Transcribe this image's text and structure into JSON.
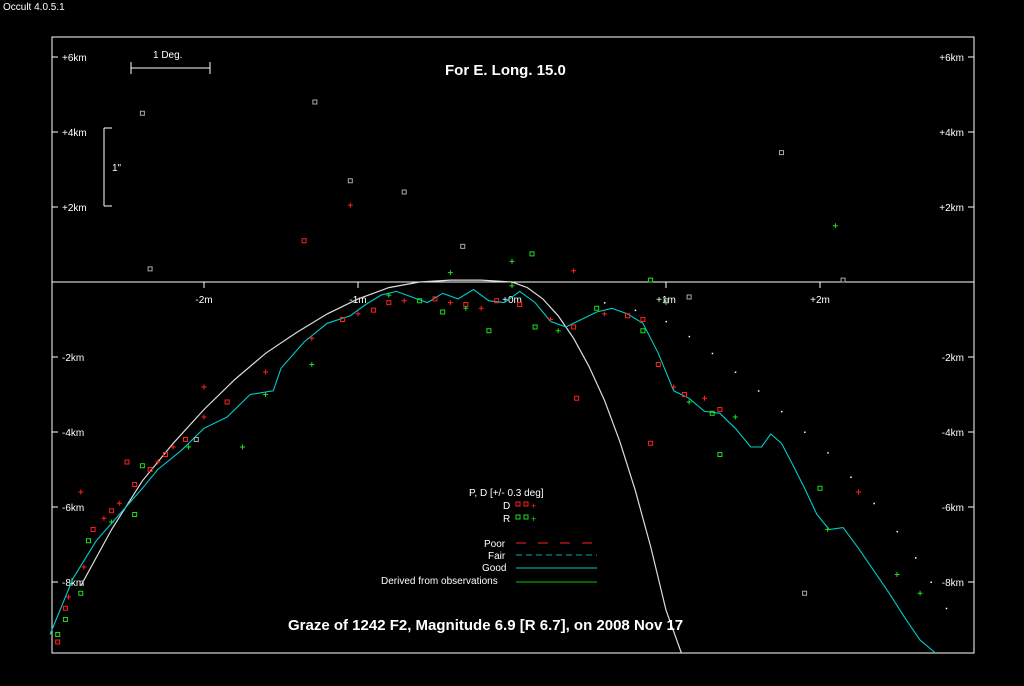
{
  "window": {
    "title": "Occult 4.0.5.1"
  },
  "colors": {
    "background": "#000000",
    "frame": "#ffffff",
    "limb": "#dddddd",
    "profile_good": "#00cccc",
    "derived": "#00cc00",
    "disappear": "#ff2020",
    "reappear": "#20dd20",
    "other": "#aaaaaa"
  },
  "chart_data": {
    "type": "scatter",
    "title": "For E. Long. 15.0",
    "caption": "Graze of  1242 F2,  Magnitude 6.9 [R 6.7],  on 2008 Nov 17",
    "x_ticks": [
      {
        "v": -2,
        "label": "-2m"
      },
      {
        "v": -1,
        "label": "-1m"
      },
      {
        "v": 0,
        "label": "+0m"
      },
      {
        "v": 1,
        "label": "+1m"
      },
      {
        "v": 2,
        "label": "+2m"
      }
    ],
    "y_ticks": [
      {
        "v": 6,
        "label": "+6km"
      },
      {
        "v": 4,
        "label": "+4km"
      },
      {
        "v": 2,
        "label": "+2km"
      },
      {
        "v": -2,
        "label": "-2km"
      },
      {
        "v": -4,
        "label": "-4km"
      },
      {
        "v": -6,
        "label": "-6km"
      },
      {
        "v": -8,
        "label": "-8km"
      }
    ],
    "xlim": [
      -3.0,
      2.8
    ],
    "ylim": [
      -10.0,
      6.0
    ],
    "scale_bars": {
      "degree": "1 Deg.",
      "arcsec": "1\""
    },
    "legend": {
      "pd_header": "P, D [+/- 0.3 deg]",
      "D": "D",
      "R": "R",
      "poor": "Poor",
      "fair": "Fair",
      "good": "Good",
      "derived": "Derived from observations"
    },
    "mean_limb": [
      [
        -3.0,
        -9.9
      ],
      [
        -2.8,
        -8.1
      ],
      [
        -2.6,
        -6.6
      ],
      [
        -2.4,
        -5.3
      ],
      [
        -2.2,
        -4.3
      ],
      [
        -2.0,
        -3.4
      ],
      [
        -1.8,
        -2.6
      ],
      [
        -1.6,
        -1.9
      ],
      [
        -1.4,
        -1.35
      ],
      [
        -1.2,
        -0.85
      ],
      [
        -1.0,
        -0.45
      ],
      [
        -0.8,
        -0.15
      ],
      [
        -0.6,
        0.0
      ],
      [
        -0.4,
        0.05
      ],
      [
        -0.2,
        0.05
      ],
      [
        0.0,
        0.0
      ],
      [
        0.1,
        -0.15
      ],
      [
        0.2,
        -0.45
      ],
      [
        0.3,
        -0.9
      ],
      [
        0.4,
        -1.5
      ],
      [
        0.5,
        -2.25
      ],
      [
        0.6,
        -3.15
      ],
      [
        0.7,
        -4.25
      ],
      [
        0.8,
        -5.55
      ],
      [
        0.9,
        -7.05
      ],
      [
        1.0,
        -8.75
      ],
      [
        1.1,
        -10.0
      ]
    ],
    "good_profile": [
      [
        -3.0,
        -9.4
      ],
      [
        -2.85,
        -7.9
      ],
      [
        -2.7,
        -6.9
      ],
      [
        -2.55,
        -6.2
      ],
      [
        -2.4,
        -5.5
      ],
      [
        -2.3,
        -5.0
      ],
      [
        -2.15,
        -4.5
      ],
      [
        -2.0,
        -3.9
      ],
      [
        -1.85,
        -3.6
      ],
      [
        -1.7,
        -3.0
      ],
      [
        -1.55,
        -2.9
      ],
      [
        -1.5,
        -2.3
      ],
      [
        -1.35,
        -1.6
      ],
      [
        -1.2,
        -1.1
      ],
      [
        -1.05,
        -0.9
      ],
      [
        -0.95,
        -0.6
      ],
      [
        -0.85,
        -0.35
      ],
      [
        -0.75,
        -0.25
      ],
      [
        -0.65,
        -0.4
      ],
      [
        -0.55,
        -0.55
      ],
      [
        -0.45,
        -0.3
      ],
      [
        -0.35,
        -0.45
      ],
      [
        -0.25,
        -0.2
      ],
      [
        -0.15,
        -0.5
      ],
      [
        -0.05,
        -0.55
      ],
      [
        0.05,
        -0.25
      ],
      [
        0.15,
        -0.55
      ],
      [
        0.25,
        -1.05
      ],
      [
        0.35,
        -1.2
      ],
      [
        0.45,
        -1.0
      ],
      [
        0.55,
        -0.8
      ],
      [
        0.65,
        -0.7
      ],
      [
        0.75,
        -0.85
      ],
      [
        0.85,
        -1.1
      ],
      [
        0.95,
        -1.9
      ],
      [
        1.05,
        -2.9
      ],
      [
        1.15,
        -3.1
      ],
      [
        1.25,
        -3.45
      ],
      [
        1.35,
        -3.5
      ],
      [
        1.45,
        -3.9
      ],
      [
        1.55,
        -4.4
      ],
      [
        1.62,
        -4.4
      ],
      [
        1.68,
        -4.05
      ],
      [
        1.75,
        -4.3
      ],
      [
        1.82,
        -4.85
      ],
      [
        1.9,
        -5.5
      ],
      [
        1.98,
        -6.2
      ],
      [
        2.06,
        -6.6
      ],
      [
        2.15,
        -6.55
      ],
      [
        2.25,
        -7.1
      ],
      [
        2.35,
        -7.7
      ],
      [
        2.45,
        -8.3
      ],
      [
        2.55,
        -8.95
      ],
      [
        2.65,
        -9.55
      ],
      [
        2.75,
        -10.0
      ]
    ],
    "points": [
      {
        "x": -3.0,
        "y": -9.2,
        "s": "D",
        "m": "o"
      },
      {
        "x": -2.95,
        "y": -9.6,
        "s": "D",
        "m": "o"
      },
      {
        "x": -2.9,
        "y": -8.7,
        "s": "D",
        "m": "o"
      },
      {
        "x": -2.88,
        "y": -8.4,
        "s": "D",
        "m": "+"
      },
      {
        "x": -2.78,
        "y": -7.6,
        "s": "D",
        "m": "+"
      },
      {
        "x": -2.72,
        "y": -6.6,
        "s": "D",
        "m": "o"
      },
      {
        "x": -2.65,
        "y": -6.3,
        "s": "D",
        "m": "+"
      },
      {
        "x": -2.6,
        "y": -6.1,
        "s": "D",
        "m": "o"
      },
      {
        "x": -2.55,
        "y": -5.9,
        "s": "D",
        "m": "+"
      },
      {
        "x": -2.45,
        "y": -5.4,
        "s": "D",
        "m": "o"
      },
      {
        "x": -2.35,
        "y": -5.0,
        "s": "D",
        "m": "o"
      },
      {
        "x": -2.3,
        "y": -4.8,
        "s": "D",
        "m": "+"
      },
      {
        "x": -2.25,
        "y": -4.6,
        "s": "D",
        "m": "o"
      },
      {
        "x": -2.2,
        "y": -4.4,
        "s": "D",
        "m": "+"
      },
      {
        "x": -2.12,
        "y": -4.2,
        "s": "D",
        "m": "o"
      },
      {
        "x": -2.0,
        "y": -3.6,
        "s": "D",
        "m": "+"
      },
      {
        "x": -1.85,
        "y": -3.2,
        "s": "D",
        "m": "o"
      },
      {
        "x": -1.6,
        "y": -2.4,
        "s": "D",
        "m": "+"
      },
      {
        "x": -1.3,
        "y": -1.5,
        "s": "D",
        "m": "+"
      },
      {
        "x": -1.1,
        "y": -1.0,
        "s": "D",
        "m": "o"
      },
      {
        "x": -1.0,
        "y": -0.85,
        "s": "D",
        "m": "+"
      },
      {
        "x": -0.9,
        "y": -0.75,
        "s": "D",
        "m": "o"
      },
      {
        "x": -0.8,
        "y": -0.55,
        "s": "D",
        "m": "o"
      },
      {
        "x": -0.7,
        "y": -0.5,
        "s": "D",
        "m": "+"
      },
      {
        "x": -0.5,
        "y": -0.45,
        "s": "D",
        "m": "o"
      },
      {
        "x": -0.4,
        "y": -0.55,
        "s": "D",
        "m": "+"
      },
      {
        "x": -0.3,
        "y": -0.6,
        "s": "D",
        "m": "o"
      },
      {
        "x": -0.2,
        "y": -0.7,
        "s": "D",
        "m": "+"
      },
      {
        "x": -0.1,
        "y": -0.5,
        "s": "D",
        "m": "o"
      },
      {
        "x": 0.05,
        "y": -0.6,
        "s": "D",
        "m": "o"
      },
      {
        "x": 0.25,
        "y": -1.0,
        "s": "D",
        "m": "+"
      },
      {
        "x": 0.4,
        "y": -1.2,
        "s": "D",
        "m": "o"
      },
      {
        "x": 0.6,
        "y": -0.85,
        "s": "D",
        "m": "+"
      },
      {
        "x": 0.75,
        "y": -0.9,
        "s": "D",
        "m": "o"
      },
      {
        "x": 0.85,
        "y": -1.0,
        "s": "D",
        "m": "o"
      },
      {
        "x": 0.95,
        "y": -2.2,
        "s": "D",
        "m": "o"
      },
      {
        "x": 1.05,
        "y": -2.8,
        "s": "D",
        "m": "+"
      },
      {
        "x": 1.12,
        "y": -3.0,
        "s": "D",
        "m": "o"
      },
      {
        "x": 1.25,
        "y": -3.1,
        "s": "D",
        "m": "+"
      },
      {
        "x": 1.35,
        "y": -3.4,
        "s": "D",
        "m": "o"
      },
      {
        "x": 0.42,
        "y": -3.1,
        "s": "D",
        "m": "o"
      },
      {
        "x": 0.9,
        "y": -4.3,
        "s": "D",
        "m": "o"
      },
      {
        "x": -2.0,
        "y": -2.8,
        "s": "D",
        "m": "+"
      },
      {
        "x": -1.35,
        "y": 1.1,
        "s": "D",
        "m": "o"
      },
      {
        "x": -1.05,
        "y": 2.05,
        "s": "D",
        "m": "+"
      },
      {
        "x": 0.4,
        "y": 0.3,
        "s": "D",
        "m": "+"
      },
      {
        "x": 2.25,
        "y": -5.6,
        "s": "D",
        "m": "+"
      },
      {
        "x": -2.8,
        "y": -5.6,
        "s": "D",
        "m": "+"
      },
      {
        "x": -2.5,
        "y": -4.8,
        "s": "D",
        "m": "o"
      },
      {
        "x": -2.95,
        "y": -9.4,
        "s": "R",
        "m": "o"
      },
      {
        "x": -2.9,
        "y": -9.0,
        "s": "R",
        "m": "o"
      },
      {
        "x": -2.8,
        "y": -8.3,
        "s": "R",
        "m": "o"
      },
      {
        "x": -2.75,
        "y": -6.9,
        "s": "R",
        "m": "o"
      },
      {
        "x": -2.6,
        "y": -6.4,
        "s": "R",
        "m": "+"
      },
      {
        "x": -2.4,
        "y": -4.9,
        "s": "R",
        "m": "o"
      },
      {
        "x": -2.1,
        "y": -4.4,
        "s": "R",
        "m": "+"
      },
      {
        "x": -1.75,
        "y": -4.4,
        "s": "R",
        "m": "+"
      },
      {
        "x": -1.6,
        "y": -3.0,
        "s": "R",
        "m": "+"
      },
      {
        "x": -1.3,
        "y": -2.2,
        "s": "R",
        "m": "+"
      },
      {
        "x": -0.8,
        "y": -0.35,
        "s": "R",
        "m": "+"
      },
      {
        "x": -0.6,
        "y": -0.5,
        "s": "R",
        "m": "o"
      },
      {
        "x": -0.45,
        "y": -0.8,
        "s": "R",
        "m": "o"
      },
      {
        "x": -0.3,
        "y": -0.7,
        "s": "R",
        "m": "+"
      },
      {
        "x": -0.15,
        "y": -1.3,
        "s": "R",
        "m": "o"
      },
      {
        "x": 0.0,
        "y": -0.1,
        "s": "R",
        "m": "+"
      },
      {
        "x": 0.15,
        "y": -1.2,
        "s": "R",
        "m": "o"
      },
      {
        "x": 0.3,
        "y": -1.3,
        "s": "R",
        "m": "+"
      },
      {
        "x": 0.55,
        "y": -0.7,
        "s": "R",
        "m": "o"
      },
      {
        "x": 0.85,
        "y": -1.3,
        "s": "R",
        "m": "o"
      },
      {
        "x": 1.15,
        "y": -3.2,
        "s": "R",
        "m": "+"
      },
      {
        "x": 1.3,
        "y": -3.5,
        "s": "R",
        "m": "o"
      },
      {
        "x": 1.45,
        "y": -3.6,
        "s": "R",
        "m": "+"
      },
      {
        "x": 1.35,
        "y": -4.6,
        "s": "R",
        "m": "o"
      },
      {
        "x": -0.4,
        "y": 0.25,
        "s": "R",
        "m": "+"
      },
      {
        "x": 0.0,
        "y": 0.55,
        "s": "R",
        "m": "+"
      },
      {
        "x": 0.13,
        "y": 0.75,
        "s": "R",
        "m": "o"
      },
      {
        "x": 0.9,
        "y": 0.05,
        "s": "R",
        "m": "o"
      },
      {
        "x": 2.1,
        "y": 1.5,
        "s": "R",
        "m": "+"
      },
      {
        "x": 2.5,
        "y": -7.8,
        "s": "R",
        "m": "+"
      },
      {
        "x": 2.65,
        "y": -8.3,
        "s": "R",
        "m": "+"
      },
      {
        "x": 2.95,
        "y": -9.95,
        "s": "R",
        "m": "+"
      },
      {
        "x": 2.0,
        "y": -5.5,
        "s": "R",
        "m": "o"
      },
      {
        "x": 2.05,
        "y": -6.6,
        "s": "R",
        "m": "+"
      },
      {
        "x": -2.45,
        "y": -6.2,
        "s": "R",
        "m": "o"
      },
      {
        "x": 1.0,
        "y": -0.55,
        "s": "R",
        "m": "+"
      },
      {
        "x": -2.4,
        "y": 4.5,
        "s": "O",
        "m": "o"
      },
      {
        "x": -1.28,
        "y": 4.8,
        "s": "O",
        "m": "o"
      },
      {
        "x": -1.05,
        "y": 2.7,
        "s": "O",
        "m": "o"
      },
      {
        "x": -0.7,
        "y": 2.4,
        "s": "O",
        "m": "o"
      },
      {
        "x": -0.32,
        "y": 0.95,
        "s": "O",
        "m": "o"
      },
      {
        "x": 1.75,
        "y": 3.45,
        "s": "O",
        "m": "o"
      },
      {
        "x": 2.15,
        "y": 0.05,
        "s": "O",
        "m": "o"
      },
      {
        "x": -2.35,
        "y": 0.35,
        "s": "O",
        "m": "o"
      },
      {
        "x": 1.0,
        "y": -0.5,
        "s": "O",
        "m": "o"
      },
      {
        "x": 1.15,
        "y": -0.4,
        "s": "O",
        "m": "o"
      },
      {
        "x": -2.05,
        "y": -4.2,
        "s": "O",
        "m": "o"
      },
      {
        "x": 1.9,
        "y": -8.3,
        "s": "O",
        "m": "o"
      }
    ],
    "boundary_dots": [
      [
        0.6,
        -0.55
      ],
      [
        0.8,
        -0.75
      ],
      [
        1.0,
        -1.05
      ],
      [
        1.15,
        -1.45
      ],
      [
        1.3,
        -1.9
      ],
      [
        1.45,
        -2.4
      ],
      [
        1.6,
        -2.9
      ],
      [
        1.75,
        -3.45
      ],
      [
        1.9,
        -4.0
      ],
      [
        2.05,
        -4.55
      ],
      [
        2.2,
        -5.2
      ],
      [
        2.35,
        -5.9
      ],
      [
        2.5,
        -6.65
      ],
      [
        2.62,
        -7.35
      ],
      [
        2.72,
        -8.0
      ],
      [
        2.82,
        -8.7
      ]
    ]
  }
}
